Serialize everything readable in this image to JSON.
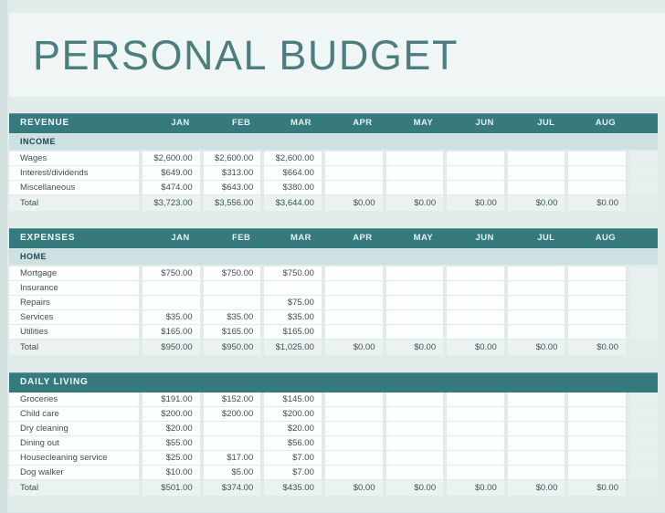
{
  "title": "PERSONAL BUDGET",
  "months": [
    "JAN",
    "FEB",
    "MAR",
    "APR",
    "MAY",
    "JUN",
    "JUL",
    "AUG"
  ],
  "colors": {
    "accent_teal": "#377a7d",
    "category_band": "#cde0e2",
    "title_panel": "#f0f6f5",
    "page_background": "#e0ebea",
    "title_text": "#4d7e7f",
    "cell_text": "#40504f"
  },
  "sections": [
    {
      "header": "REVENUE",
      "show_months": true,
      "category": "INCOME",
      "rows": [
        {
          "label": "Wages",
          "values": [
            "$2,600.00",
            "$2,600.00",
            "$2,600.00",
            "",
            "",
            "",
            "",
            ""
          ]
        },
        {
          "label": "Interest/dividends",
          "values": [
            "$649.00",
            "$313.00",
            "$664.00",
            "",
            "",
            "",
            "",
            ""
          ]
        },
        {
          "label": "Miscellaneous",
          "values": [
            "$474.00",
            "$643.00",
            "$380.00",
            "",
            "",
            "",
            "",
            ""
          ]
        }
      ],
      "total": {
        "label": "Total",
        "values": [
          "$3,723.00",
          "$3,556.00",
          "$3,644.00",
          "$0.00",
          "$0.00",
          "$0.00",
          "$0.00",
          "$0.00"
        ]
      }
    },
    {
      "header": "EXPENSES",
      "show_months": true,
      "category": "HOME",
      "rows": [
        {
          "label": "Mortgage",
          "values": [
            "$750.00",
            "$750.00",
            "$750.00",
            "",
            "",
            "",
            "",
            ""
          ]
        },
        {
          "label": "Insurance",
          "values": [
            "",
            "",
            "",
            "",
            "",
            "",
            "",
            ""
          ]
        },
        {
          "label": "Repairs",
          "values": [
            "",
            "",
            "$75.00",
            "",
            "",
            "",
            "",
            ""
          ]
        },
        {
          "label": "Services",
          "values": [
            "$35.00",
            "$35.00",
            "$35.00",
            "",
            "",
            "",
            "",
            ""
          ]
        },
        {
          "label": "Utilities",
          "values": [
            "$165.00",
            "$165.00",
            "$165.00",
            "",
            "",
            "",
            "",
            ""
          ]
        }
      ],
      "total": {
        "label": "Total",
        "values": [
          "$950.00",
          "$950.00",
          "$1,025.00",
          "$0.00",
          "$0.00",
          "$0.00",
          "$0.00",
          "$0.00"
        ]
      }
    },
    {
      "header": "DAILY LIVING",
      "show_months": false,
      "category": null,
      "rows": [
        {
          "label": "Groceries",
          "values": [
            "$191.00",
            "$152.00",
            "$145.00",
            "",
            "",
            "",
            "",
            ""
          ]
        },
        {
          "label": "Child care",
          "values": [
            "$200.00",
            "$200.00",
            "$200.00",
            "",
            "",
            "",
            "",
            ""
          ]
        },
        {
          "label": "Dry cleaning",
          "values": [
            "$20.00",
            "",
            "$20.00",
            "",
            "",
            "",
            "",
            ""
          ]
        },
        {
          "label": "Dining out",
          "values": [
            "$55.00",
            "",
            "$56.00",
            "",
            "",
            "",
            "",
            ""
          ]
        },
        {
          "label": "Housecleaning service",
          "values": [
            "$25.00",
            "$17.00",
            "$7.00",
            "",
            "",
            "",
            "",
            ""
          ]
        },
        {
          "label": "Dog walker",
          "values": [
            "$10.00",
            "$5.00",
            "$7.00",
            "",
            "",
            "",
            "",
            ""
          ]
        }
      ],
      "total": {
        "label": "Total",
        "values": [
          "$501.00",
          "$374.00",
          "$435.00",
          "$0.00",
          "$0.00",
          "$0.00",
          "$0.00",
          "$0.00"
        ]
      }
    }
  ]
}
